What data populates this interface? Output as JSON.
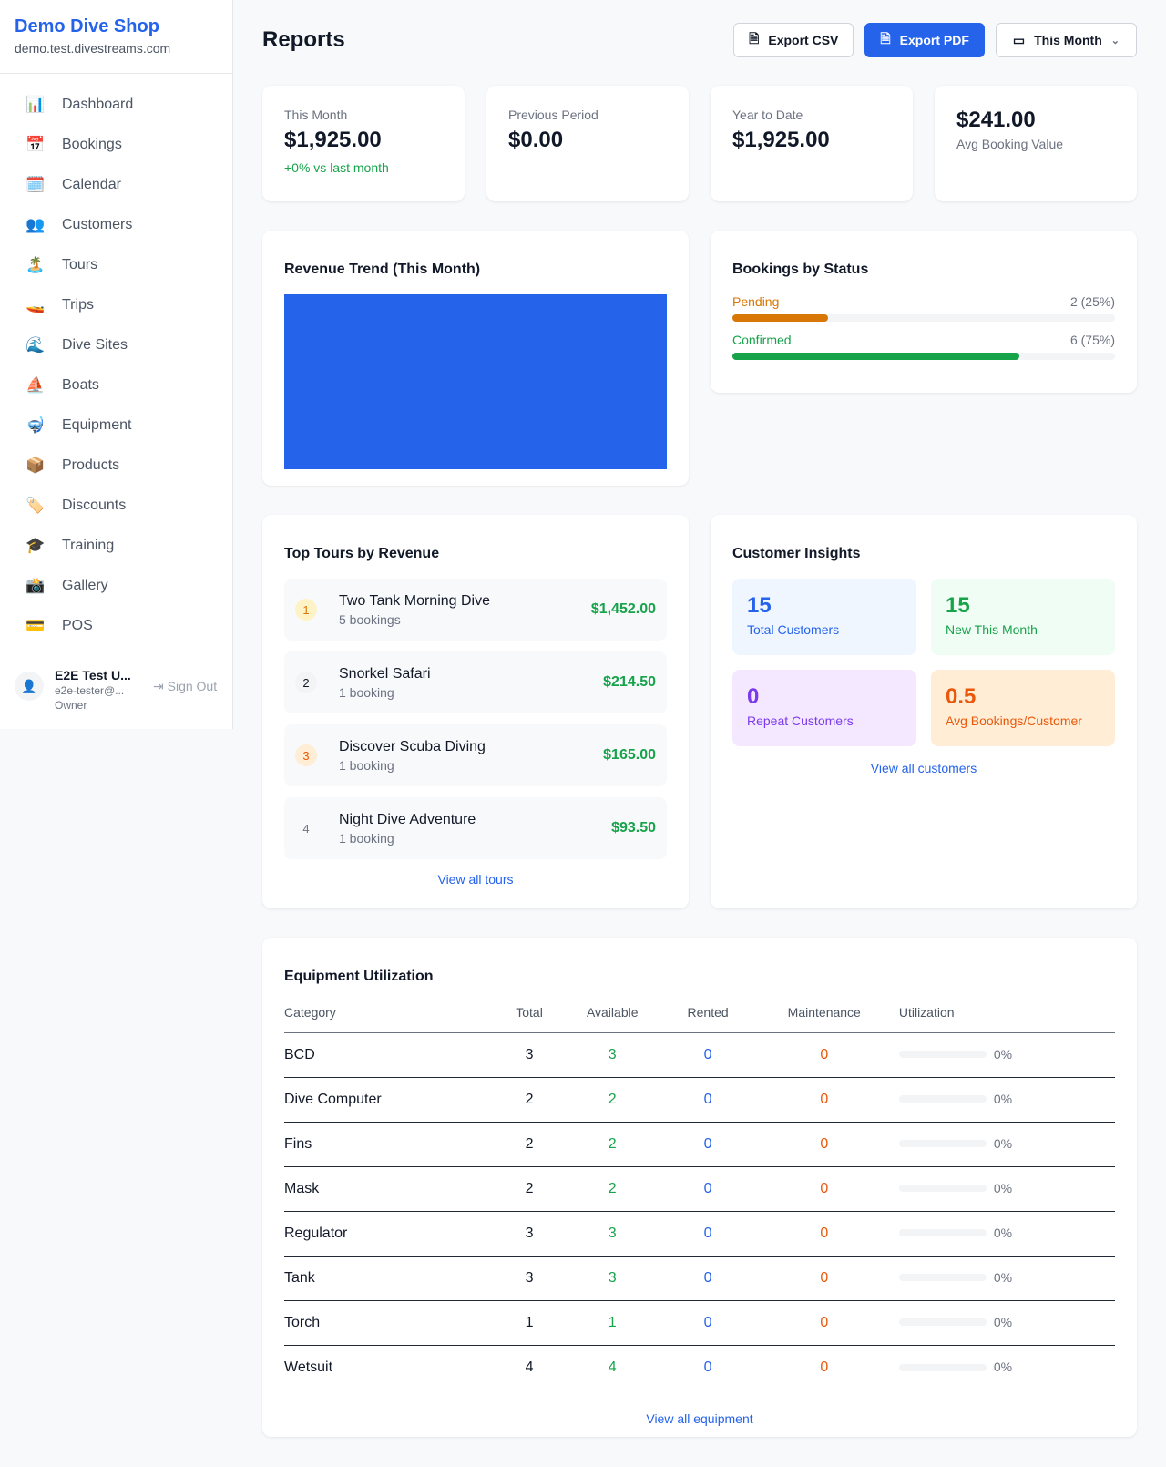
{
  "sidebar": {
    "shop_name": "Demo Dive Shop",
    "shop_url": "demo.test.divestreams.com",
    "items": [
      {
        "icon": "📊",
        "label": "Dashboard"
      },
      {
        "icon": "📅",
        "label": "Bookings"
      },
      {
        "icon": "🗓️",
        "label": "Calendar"
      },
      {
        "icon": "👥",
        "label": "Customers"
      },
      {
        "icon": "🏝️",
        "label": "Tours"
      },
      {
        "icon": "🚤",
        "label": "Trips"
      },
      {
        "icon": "🌊",
        "label": "Dive Sites"
      },
      {
        "icon": "⛵",
        "label": "Boats"
      },
      {
        "icon": "🤿",
        "label": "Equipment"
      },
      {
        "icon": "📦",
        "label": "Products"
      },
      {
        "icon": "🏷️",
        "label": "Discounts"
      },
      {
        "icon": "🎓",
        "label": "Training"
      },
      {
        "icon": "📸",
        "label": "Gallery"
      },
      {
        "icon": "💳",
        "label": "POS"
      }
    ],
    "user": {
      "name": "E2E Test U...",
      "email": "e2e-tester@...",
      "role": "Owner",
      "sign_out": "Sign Out"
    }
  },
  "header": {
    "title": "Reports",
    "export_csv": "Export CSV",
    "export_pdf": "Export PDF",
    "period": "This Month"
  },
  "stats": [
    {
      "label": "This Month",
      "value": "$1,925.00",
      "sub": "+0% vs last month"
    },
    {
      "label": "Previous Period",
      "value": "$0.00"
    },
    {
      "label": "Year to Date",
      "value": "$1,925.00"
    },
    {
      "value": "$241.00",
      "label": "Avg Booking Value"
    }
  ],
  "revenue": {
    "title": "Revenue Trend (This Month)",
    "bar_color": "#2563eb"
  },
  "bookings_status": {
    "title": "Bookings by Status",
    "items": [
      {
        "label": "Pending",
        "value": "2 (25%)",
        "percent": 25,
        "color": "#d97706"
      },
      {
        "label": "Confirmed",
        "value": "6 (75%)",
        "percent": 75,
        "color": "#16a34a"
      }
    ]
  },
  "top_tours": {
    "title": "Top Tours by Revenue",
    "link": "View all tours",
    "items": [
      {
        "rank": "1",
        "name": "Two Tank Morning Dive",
        "bookings": "5 bookings",
        "revenue": "$1,452.00"
      },
      {
        "rank": "2",
        "name": "Snorkel Safari",
        "bookings": "1 booking",
        "revenue": "$214.50"
      },
      {
        "rank": "3",
        "name": "Discover Scuba Diving",
        "bookings": "1 booking",
        "revenue": "$165.00"
      },
      {
        "rank": "4",
        "name": "Night Dive Adventure",
        "bookings": "1 booking",
        "revenue": "$93.50"
      }
    ]
  },
  "insights": {
    "title": "Customer Insights",
    "link": "View all customers",
    "items": [
      {
        "value": "15",
        "label": "Total Customers",
        "bg": "#eff6ff",
        "color": "#2563eb"
      },
      {
        "value": "15",
        "label": "New This Month",
        "bg": "#f0fdf4",
        "color": "#16a34a"
      },
      {
        "value": "0",
        "label": "Repeat Customers",
        "bg": "#f3e8ff",
        "color": "#7c3aed"
      },
      {
        "value": "0.5",
        "label": "Avg Bookings/Customer",
        "bg": "#ffedd5",
        "color": "#ea580c"
      }
    ]
  },
  "equipment": {
    "title": "Equipment Utilization",
    "link": "View all equipment",
    "columns": [
      "Category",
      "Total",
      "Available",
      "Rented",
      "Maintenance",
      "Utilization"
    ],
    "rows": [
      {
        "category": "BCD",
        "total": "3",
        "available": "3",
        "rented": "0",
        "maintenance": "0",
        "utilization": "0%"
      },
      {
        "category": "Dive Computer",
        "total": "2",
        "available": "2",
        "rented": "0",
        "maintenance": "0",
        "utilization": "0%"
      },
      {
        "category": "Fins",
        "total": "2",
        "available": "2",
        "rented": "0",
        "maintenance": "0",
        "utilization": "0%"
      },
      {
        "category": "Mask",
        "total": "2",
        "available": "2",
        "rented": "0",
        "maintenance": "0",
        "utilization": "0%"
      },
      {
        "category": "Regulator",
        "total": "3",
        "available": "3",
        "rented": "0",
        "maintenance": "0",
        "utilization": "0%"
      },
      {
        "category": "Tank",
        "total": "3",
        "available": "3",
        "rented": "0",
        "maintenance": "0",
        "utilization": "0%"
      },
      {
        "category": "Torch",
        "total": "1",
        "available": "1",
        "rented": "0",
        "maintenance": "0",
        "utilization": "0%"
      },
      {
        "category": "Wetsuit",
        "total": "4",
        "available": "4",
        "rented": "0",
        "maintenance": "0",
        "utilization": "0%"
      }
    ]
  }
}
